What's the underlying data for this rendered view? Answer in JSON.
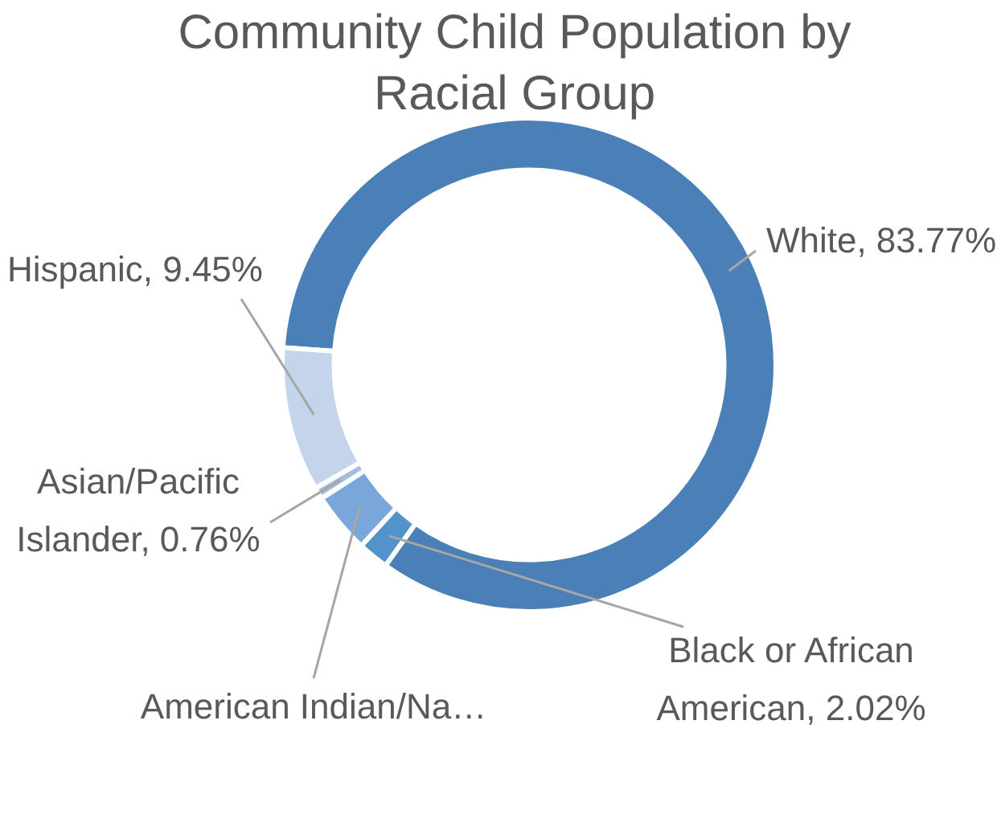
{
  "chart_data": {
    "type": "donut",
    "title": "Community Child Population by Racial Group",
    "categories": [
      "White",
      "Black or African American",
      "American Indian/Na…",
      "Asian/Pacific Islander",
      "Hispanic"
    ],
    "values": [
      83.77,
      2.02,
      4.0,
      0.76,
      9.45
    ],
    "value_labels": [
      "83.77%",
      "2.02%",
      null,
      "0.76%",
      "9.45%"
    ],
    "colors": [
      "#4a80b7",
      "#5393cc",
      "#7aa7d9",
      "#a2bde2",
      "#c3d4eb"
    ],
    "legend": false
  }
}
